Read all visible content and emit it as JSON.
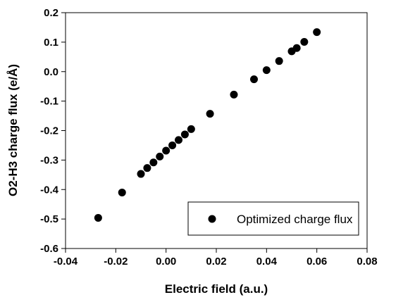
{
  "chart_data": {
    "type": "scatter",
    "title": "",
    "xlabel": "Electric field (a.u.)",
    "ylabel": "O2-H3 charge flux (e/Å)",
    "xlim": [
      -0.04,
      0.08
    ],
    "ylim": [
      -0.6,
      0.2
    ],
    "x_ticks": [
      "-0.04",
      "-0.02",
      "0.00",
      "0.02",
      "0.04",
      "0.06",
      "0.08"
    ],
    "y_ticks": [
      "0.2",
      "0.1",
      "0.0",
      "-0.1",
      "-0.2",
      "-0.3",
      "-0.4",
      "-0.5",
      "-0.6"
    ],
    "grid": false,
    "legend_position": "bottom-right",
    "series": [
      {
        "name": "Optimized charge flux",
        "color": "#000000",
        "marker": "filled-circle",
        "points": [
          {
            "x": -0.027,
            "y": -0.496
          },
          {
            "x": -0.0175,
            "y": -0.41
          },
          {
            "x": -0.01,
            "y": -0.347
          },
          {
            "x": -0.0075,
            "y": -0.327
          },
          {
            "x": -0.005,
            "y": -0.308
          },
          {
            "x": -0.0025,
            "y": -0.288
          },
          {
            "x": 0.0,
            "y": -0.268
          },
          {
            "x": 0.0025,
            "y": -0.25
          },
          {
            "x": 0.005,
            "y": -0.232
          },
          {
            "x": 0.0075,
            "y": -0.213
          },
          {
            "x": 0.01,
            "y": -0.195
          },
          {
            "x": 0.0175,
            "y": -0.143
          },
          {
            "x": 0.027,
            "y": -0.078
          },
          {
            "x": 0.035,
            "y": -0.026
          },
          {
            "x": 0.04,
            "y": 0.005
          },
          {
            "x": 0.045,
            "y": 0.036
          },
          {
            "x": 0.05,
            "y": 0.069
          },
          {
            "x": 0.052,
            "y": 0.08
          },
          {
            "x": 0.055,
            "y": 0.101
          },
          {
            "x": 0.06,
            "y": 0.134
          }
        ]
      }
    ]
  }
}
